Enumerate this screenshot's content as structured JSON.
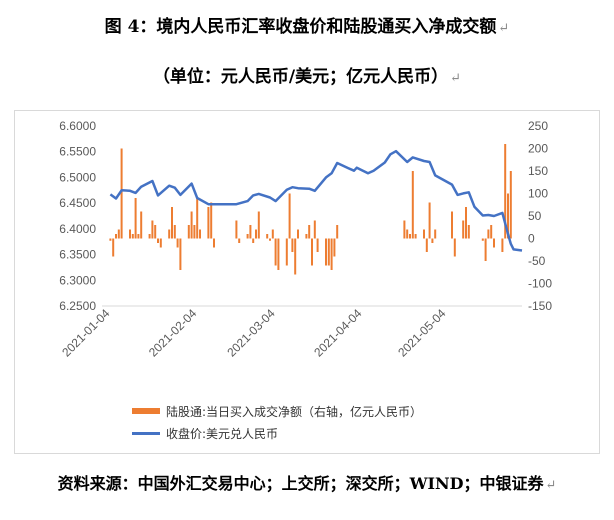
{
  "title_line1": "图 4：境内人民币汇率收盘价和陆股通买入净成交额",
  "title_line2": "（单位：元人民币/美元；亿元人民币）",
  "source": "资料来源：中国外汇交易中心；上交所；深交所；WIND；中银证券",
  "colors": {
    "bar": "#ed7d31",
    "line": "#4472c4",
    "grid": "#d9d9d9",
    "axis_text": "#595959"
  },
  "chart_data": {
    "type": "bar+line",
    "legend_position": "bottom-left",
    "grid": false,
    "left_axis": {
      "min": 6.25,
      "max": 6.6,
      "step": 0.05,
      "ticks": [
        "6.6000",
        "6.5500",
        "6.5000",
        "6.4500",
        "6.4000",
        "6.3500",
        "6.3000",
        "6.2500"
      ]
    },
    "right_axis": {
      "min": -150,
      "max": 250,
      "step": 50,
      "ticks": [
        "250",
        "200",
        "150",
        "100",
        "50",
        "0",
        "-50",
        "-100",
        "-150"
      ]
    },
    "x_axis": {
      "start": "2021-01-01",
      "end": "2021-05-31",
      "ticks": [
        "2021-01-04",
        "2021-02-04",
        "2021-03-04",
        "2021-04-04",
        "2021-05-04"
      ]
    },
    "series": [
      {
        "name": "陆股通:当日买入成交净额（右轴，亿元人民币）",
        "type": "bar",
        "axis": "right",
        "x": [
          "2021-01-04",
          "2021-01-05",
          "2021-01-06",
          "2021-01-07",
          "2021-01-08",
          "2021-01-11",
          "2021-01-12",
          "2021-01-13",
          "2021-01-14",
          "2021-01-15",
          "2021-01-18",
          "2021-01-19",
          "2021-01-20",
          "2021-01-21",
          "2021-01-22",
          "2021-01-25",
          "2021-01-26",
          "2021-01-27",
          "2021-01-28",
          "2021-01-29",
          "2021-02-01",
          "2021-02-02",
          "2021-02-03",
          "2021-02-04",
          "2021-02-05",
          "2021-02-08",
          "2021-02-09",
          "2021-02-10",
          "2021-02-18",
          "2021-02-19",
          "2021-02-22",
          "2021-02-23",
          "2021-02-24",
          "2021-02-25",
          "2021-02-26",
          "2021-03-01",
          "2021-03-02",
          "2021-03-03",
          "2021-03-04",
          "2021-03-05",
          "2021-03-08",
          "2021-03-09",
          "2021-03-10",
          "2021-03-11",
          "2021-03-12",
          "2021-03-15",
          "2021-03-16",
          "2021-03-17",
          "2021-03-18",
          "2021-03-19",
          "2021-03-22",
          "2021-03-23",
          "2021-03-24",
          "2021-03-25",
          "2021-03-26",
          "2021-04-19",
          "2021-04-20",
          "2021-04-21",
          "2021-04-22",
          "2021-04-23",
          "2021-04-26",
          "2021-04-27",
          "2021-04-28",
          "2021-04-29",
          "2021-04-30",
          "2021-05-06",
          "2021-05-07",
          "2021-05-10",
          "2021-05-11",
          "2021-05-12",
          "2021-05-17",
          "2021-05-18",
          "2021-05-19",
          "2021-05-20",
          "2021-05-21",
          "2021-05-24",
          "2021-05-25",
          "2021-05-26",
          "2021-05-27"
        ],
        "values": [
          -5,
          -40,
          10,
          20,
          200,
          20,
          10,
          90,
          10,
          60,
          10,
          40,
          30,
          -10,
          -20,
          20,
          70,
          30,
          -20,
          -70,
          30,
          60,
          30,
          90,
          20,
          70,
          80,
          -20,
          40,
          -10,
          10,
          30,
          -10,
          20,
          60,
          10,
          -5,
          20,
          -60,
          -70,
          -60,
          100,
          -30,
          -80,
          20,
          10,
          30,
          -60,
          40,
          -30,
          -60,
          -60,
          -70,
          -40,
          30,
          40,
          20,
          10,
          150,
          10,
          20,
          -30,
          80,
          -10,
          20,
          60,
          -40,
          40,
          70,
          30,
          -5,
          -50,
          20,
          30,
          -20,
          -30,
          210,
          100,
          150
        ]
      },
      {
        "name": "收盘价:美元兑人民币",
        "type": "line",
        "axis": "left",
        "x": [
          "2021-01-04",
          "2021-01-06",
          "2021-01-08",
          "2021-01-11",
          "2021-01-13",
          "2021-01-15",
          "2021-01-19",
          "2021-01-21",
          "2021-01-25",
          "2021-01-27",
          "2021-01-29",
          "2021-02-02",
          "2021-02-04",
          "2021-02-08",
          "2021-02-10",
          "2021-02-18",
          "2021-02-22",
          "2021-02-24",
          "2021-02-26",
          "2021-03-02",
          "2021-03-04",
          "2021-03-08",
          "2021-03-10",
          "2021-03-12",
          "2021-03-16",
          "2021-03-18",
          "2021-03-22",
          "2021-03-24",
          "2021-03-26",
          "2021-03-30",
          "2021-04-01",
          "2021-04-02",
          "2021-04-06",
          "2021-04-08",
          "2021-04-12",
          "2021-04-14",
          "2021-04-16",
          "2021-04-20",
          "2021-04-22",
          "2021-04-26",
          "2021-04-28",
          "2021-04-30",
          "2021-05-06",
          "2021-05-08",
          "2021-05-10",
          "2021-05-12",
          "2021-05-14",
          "2021-05-17",
          "2021-05-19",
          "2021-05-21",
          "2021-05-24",
          "2021-05-26",
          "2021-05-27",
          "2021-05-28",
          "2021-05-31"
        ],
        "values": [
          6.467,
          6.459,
          6.475,
          6.474,
          6.47,
          6.482,
          6.493,
          6.465,
          6.484,
          6.48,
          6.466,
          6.488,
          6.46,
          6.448,
          6.448,
          6.448,
          6.454,
          6.465,
          6.468,
          6.461,
          6.454,
          6.476,
          6.481,
          6.479,
          6.478,
          6.474,
          6.5,
          6.508,
          6.528,
          6.518,
          6.513,
          6.519,
          6.508,
          6.513,
          6.529,
          6.545,
          6.551,
          6.53,
          6.539,
          6.532,
          6.53,
          6.504,
          6.486,
          6.466,
          6.469,
          6.471,
          6.443,
          6.426,
          6.427,
          6.425,
          6.431,
          6.39,
          6.371,
          6.36,
          6.358
        ]
      }
    ]
  },
  "legend": {
    "bar_label": "陆股通:当日买入成交净额（右轴，亿元人民币）",
    "line_label": "收盘价:美元兑人民币"
  }
}
